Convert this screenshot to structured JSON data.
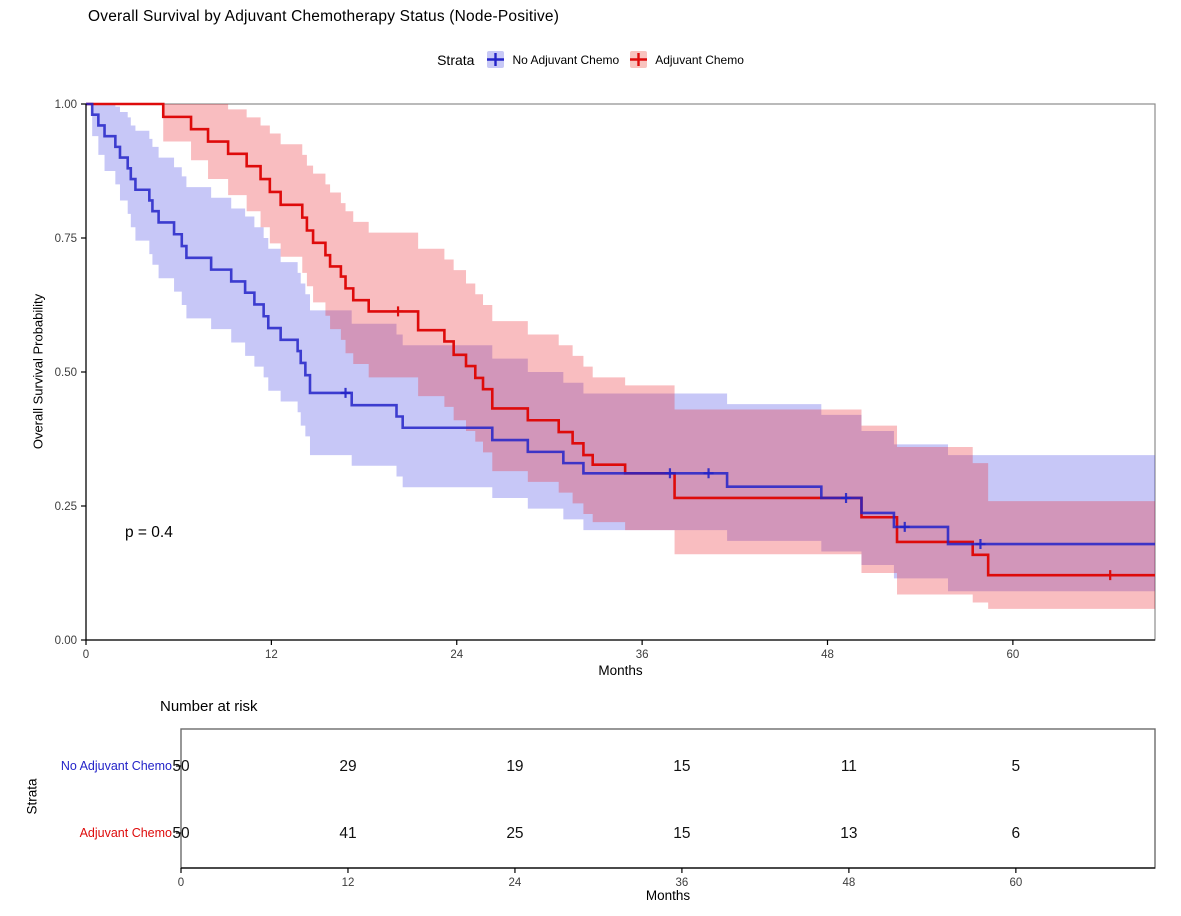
{
  "title": "Overall Survival by Adjuvant Chemotherapy Status (Node-Positive)",
  "legend": {
    "title": "Strata",
    "items": [
      {
        "label": "No Adjuvant Chemo",
        "color": "#2323C8",
        "fill": "#C7C8F6"
      },
      {
        "label": "Adjuvant Chemo",
        "color": "#DE0B0B",
        "fill": "#F9C3BE"
      }
    ]
  },
  "chart_data": {
    "type": "line",
    "subtype": "kaplan-meier-step",
    "title": "Overall Survival by Adjuvant Chemotherapy Status (Node-Positive)",
    "xlabel": "Months",
    "ylabel": "Overall Survival Probability",
    "p_value_label": "p = 0.4",
    "xlim": [
      0,
      69.2
    ],
    "ylim": [
      0,
      1
    ],
    "xticks": [
      0,
      12,
      24,
      36,
      48,
      60
    ],
    "yticks": [
      "0.00",
      "0.25",
      "0.50",
      "0.75",
      "1.00"
    ],
    "grid": false,
    "legend_position": "top",
    "series": [
      {
        "name": "No Adjuvant Chemo",
        "color": "#2323C8",
        "band_color": "rgba(70,70,230,0.30)",
        "steps": [
          [
            0,
            1.0,
            1.0,
            1.0
          ],
          [
            0.4,
            0.98,
            0.94,
            1.0
          ],
          [
            0.8,
            0.96,
            0.905,
            1.0
          ],
          [
            1.2,
            0.94,
            0.875,
            1.0
          ],
          [
            1.9,
            0.92,
            0.85,
            0.995
          ],
          [
            2.2,
            0.9,
            0.82,
            0.985
          ],
          [
            2.7,
            0.88,
            0.795,
            0.975
          ],
          [
            2.9,
            0.86,
            0.77,
            0.96
          ],
          [
            3.2,
            0.84,
            0.745,
            0.95
          ],
          [
            4.1,
            0.82,
            0.72,
            0.935
          ],
          [
            4.3,
            0.8,
            0.7,
            0.92
          ],
          [
            4.7,
            0.779,
            0.675,
            0.9
          ],
          [
            5.7,
            0.757,
            0.65,
            0.882
          ],
          [
            6.2,
            0.735,
            0.625,
            0.865
          ],
          [
            6.5,
            0.713,
            0.6,
            0.845
          ],
          [
            8.1,
            0.691,
            0.58,
            0.825
          ],
          [
            9.4,
            0.669,
            0.555,
            0.805
          ],
          [
            10.3,
            0.648,
            0.53,
            0.79
          ],
          [
            10.9,
            0.626,
            0.51,
            0.77
          ],
          [
            11.5,
            0.604,
            0.49,
            0.75
          ],
          [
            11.8,
            0.582,
            0.465,
            0.73
          ],
          [
            12.6,
            0.56,
            0.445,
            0.705
          ],
          [
            13.7,
            0.539,
            0.425,
            0.685
          ],
          [
            13.9,
            0.517,
            0.4,
            0.665
          ],
          [
            14.2,
            0.494,
            0.38,
            0.645
          ],
          [
            14.5,
            0.461,
            0.345,
            0.615
          ],
          [
            17.2,
            0.438,
            0.325,
            0.59
          ],
          [
            20.1,
            0.417,
            0.305,
            0.57
          ],
          [
            20.5,
            0.396,
            0.285,
            0.55
          ],
          [
            26.3,
            0.373,
            0.265,
            0.525
          ],
          [
            28.6,
            0.351,
            0.245,
            0.5
          ],
          [
            30.9,
            0.33,
            0.225,
            0.48
          ],
          [
            32.2,
            0.311,
            0.205,
            0.46
          ],
          [
            41.5,
            0.286,
            0.185,
            0.44
          ],
          [
            47.6,
            0.265,
            0.165,
            0.42
          ],
          [
            50.2,
            0.237,
            0.14,
            0.39
          ],
          [
            52.3,
            0.211,
            0.115,
            0.365
          ],
          [
            55.8,
            0.179,
            0.091,
            0.345
          ]
        ],
        "censors": [
          [
            16.8,
            0.461
          ],
          [
            37.8,
            0.311
          ],
          [
            40.3,
            0.311
          ],
          [
            49.2,
            0.265
          ],
          [
            53.0,
            0.211
          ],
          [
            57.9,
            0.179
          ]
        ]
      },
      {
        "name": "Adjuvant Chemo",
        "color": "#DE0B0B",
        "band_color": "rgba(235,35,45,0.30)",
        "steps": [
          [
            0,
            1.0,
            1.0,
            1.0
          ],
          [
            5.0,
            0.976,
            0.93,
            1.0
          ],
          [
            6.8,
            0.953,
            0.895,
            1.0
          ],
          [
            7.9,
            0.93,
            0.86,
            1.0
          ],
          [
            9.2,
            0.907,
            0.83,
            0.99
          ],
          [
            10.4,
            0.884,
            0.8,
            0.975
          ],
          [
            11.3,
            0.86,
            0.77,
            0.96
          ],
          [
            11.9,
            0.836,
            0.74,
            0.945
          ],
          [
            12.6,
            0.812,
            0.715,
            0.925
          ],
          [
            14.0,
            0.788,
            0.685,
            0.905
          ],
          [
            14.3,
            0.764,
            0.66,
            0.885
          ],
          [
            14.7,
            0.741,
            0.63,
            0.87
          ],
          [
            15.5,
            0.718,
            0.605,
            0.85
          ],
          [
            15.8,
            0.697,
            0.58,
            0.835
          ],
          [
            16.5,
            0.678,
            0.56,
            0.815
          ],
          [
            16.8,
            0.656,
            0.535,
            0.8
          ],
          [
            17.3,
            0.634,
            0.515,
            0.78
          ],
          [
            18.3,
            0.613,
            0.49,
            0.76
          ],
          [
            21.5,
            0.578,
            0.455,
            0.73
          ],
          [
            23.2,
            0.557,
            0.435,
            0.71
          ],
          [
            23.8,
            0.532,
            0.41,
            0.69
          ],
          [
            24.6,
            0.511,
            0.39,
            0.665
          ],
          [
            25.2,
            0.489,
            0.37,
            0.645
          ],
          [
            25.7,
            0.468,
            0.35,
            0.625
          ],
          [
            26.3,
            0.432,
            0.315,
            0.595
          ],
          [
            28.6,
            0.41,
            0.295,
            0.57
          ],
          [
            30.6,
            0.388,
            0.275,
            0.55
          ],
          [
            31.5,
            0.367,
            0.255,
            0.53
          ],
          [
            32.2,
            0.345,
            0.235,
            0.51
          ],
          [
            32.8,
            0.327,
            0.22,
            0.49
          ],
          [
            34.9,
            0.311,
            0.205,
            0.475
          ],
          [
            38.1,
            0.265,
            0.16,
            0.43
          ],
          [
            50.2,
            0.229,
            0.125,
            0.4
          ],
          [
            52.5,
            0.183,
            0.085,
            0.36
          ],
          [
            57.4,
            0.159,
            0.07,
            0.33
          ],
          [
            58.4,
            0.121,
            0.058,
            0.259
          ]
        ],
        "censors": [
          [
            20.2,
            0.613
          ],
          [
            66.3,
            0.121
          ]
        ]
      }
    ]
  },
  "risk_table": {
    "title": "Number at risk",
    "ylabel": "Strata",
    "xlabel": "Months",
    "xticks": [
      0,
      12,
      24,
      36,
      48,
      60
    ],
    "rows": [
      {
        "label": "No Adjuvant Chemo",
        "color": "#2323C8",
        "values": [
          50,
          29,
          19,
          15,
          11,
          5
        ]
      },
      {
        "label": "Adjuvant Chemo",
        "color": "#DE0B0B",
        "values": [
          50,
          41,
          25,
          15,
          13,
          6
        ]
      }
    ]
  }
}
